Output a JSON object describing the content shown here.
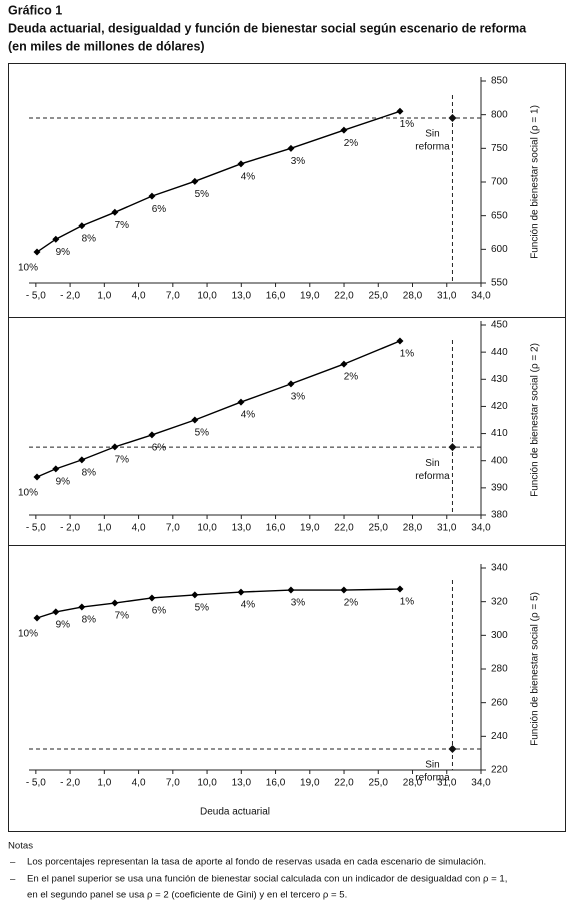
{
  "header": {
    "label": "Gráfico 1",
    "title": "Deuda actuarial, desigualdad y función de bienestar social según escenario de reforma",
    "subtitle": "(en miles de millones de dólares)"
  },
  "chart_data": [
    {
      "type": "line",
      "ylabel": "Función de bienestar social (ρ = 1)",
      "x": [
        -4.9,
        -3.25,
        -0.97,
        1.92,
        5.17,
        8.93,
        12.97,
        17.35,
        21.99,
        26.9
      ],
      "values": [
        596,
        615,
        635,
        655,
        679,
        701,
        727,
        750,
        777,
        805
      ],
      "point_labels": [
        "10%",
        "9%",
        "8%",
        "7%",
        "6%",
        "5%",
        "4%",
        "3%",
        "2%",
        "1%"
      ],
      "color": "#000000",
      "reference": {
        "x": 31.5,
        "y": 795,
        "label": [
          "Sin",
          "reforma"
        ]
      },
      "xlim": [
        -5.6,
        34
      ],
      "ylim": [
        550,
        850
      ],
      "xticks": [
        {
          "value": -5,
          "label": "- 5,0"
        },
        {
          "value": -2,
          "label": "- 2,0"
        },
        {
          "value": 1,
          "label": "1,0"
        },
        {
          "value": 4,
          "label": "4,0"
        },
        {
          "value": 7,
          "label": "7,0"
        },
        {
          "value": 10,
          "label": "10,0"
        },
        {
          "value": 13,
          "label": "13,0"
        },
        {
          "value": 16,
          "label": "16,0"
        },
        {
          "value": 19,
          "label": "19,0"
        },
        {
          "value": 22,
          "label": "22,0"
        },
        {
          "value": 25,
          "label": "25,0"
        },
        {
          "value": 28,
          "label": "28,0"
        },
        {
          "value": 31,
          "label": "31,0"
        },
        {
          "value": 34,
          "label": "34,0"
        }
      ],
      "yticks": [
        550,
        600,
        650,
        700,
        750,
        800,
        850
      ]
    },
    {
      "type": "line",
      "ylabel": "Función de bienestar social (ρ = 2)",
      "x": [
        -4.9,
        -3.25,
        -0.97,
        1.92,
        5.17,
        8.93,
        12.97,
        17.35,
        21.99,
        26.9
      ],
      "values": [
        394.0,
        397.0,
        400.3,
        405.1,
        409.5,
        415.0,
        421.6,
        428.3,
        435.6,
        444.1
      ],
      "point_labels": [
        "10%",
        "9%",
        "8%",
        "7%",
        "6%",
        "5%",
        "4%",
        "3%",
        "2%",
        "1%"
      ],
      "color": "#000000",
      "reference": {
        "x": 31.5,
        "y": 405,
        "label": [
          "Sin",
          "reforma"
        ]
      },
      "xlim": [
        -5.6,
        34
      ],
      "ylim": [
        380,
        450
      ],
      "xticks": [
        {
          "value": -5,
          "label": "- 5,0"
        },
        {
          "value": -2,
          "label": "- 2,0"
        },
        {
          "value": 1,
          "label": "1,0"
        },
        {
          "value": 4,
          "label": "4,0"
        },
        {
          "value": 7,
          "label": "7,0"
        },
        {
          "value": 10,
          "label": "10,0"
        },
        {
          "value": 13,
          "label": "13,0"
        },
        {
          "value": 16,
          "label": "16,0"
        },
        {
          "value": 19,
          "label": "19,0"
        },
        {
          "value": 22,
          "label": "22,0"
        },
        {
          "value": 25,
          "label": "25,0"
        },
        {
          "value": 28,
          "label": "28,0"
        },
        {
          "value": 31,
          "label": "31,0"
        },
        {
          "value": 34,
          "label": "34,0"
        }
      ],
      "yticks": [
        380,
        390,
        400,
        410,
        420,
        430,
        440,
        450
      ]
    },
    {
      "type": "line",
      "ylabel": "Función de bienestar social (ρ = 5)",
      "xlabel": "Deuda actuarial",
      "x": [
        -4.9,
        -3.25,
        -0.97,
        1.92,
        5.17,
        8.93,
        12.97,
        17.35,
        21.99,
        26.9
      ],
      "values": [
        310.3,
        313.9,
        316.8,
        319.2,
        322.2,
        324.0,
        325.7,
        326.9,
        326.9,
        327.5
      ],
      "point_labels": [
        "10%",
        "9%",
        "8%",
        "7%",
        "6%",
        "5%",
        "4%",
        "3%",
        "2%",
        "1%"
      ],
      "color": "#000000",
      "reference": {
        "x": 31.5,
        "y": 232.5,
        "label": [
          "Sin",
          "reforma"
        ]
      },
      "xlim": [
        -5.6,
        34
      ],
      "ylim": [
        220,
        340
      ],
      "xticks": [
        {
          "value": -5,
          "label": "- 5,0"
        },
        {
          "value": -2,
          "label": "- 2,0"
        },
        {
          "value": 1,
          "label": "1,0"
        },
        {
          "value": 4,
          "label": "4,0"
        },
        {
          "value": 7,
          "label": "7,0"
        },
        {
          "value": 10,
          "label": "10,0"
        },
        {
          "value": 13,
          "label": "13,0"
        },
        {
          "value": 16,
          "label": "16,0"
        },
        {
          "value": 19,
          "label": "19,0"
        },
        {
          "value": 22,
          "label": "22,0"
        },
        {
          "value": 25,
          "label": "25,0"
        },
        {
          "value": 28,
          "label": "28,0"
        },
        {
          "value": 31,
          "label": "31,0"
        },
        {
          "value": 34,
          "label": "34,0"
        }
      ],
      "yticks": [
        220,
        240,
        260,
        280,
        300,
        320,
        340
      ]
    }
  ],
  "notes": {
    "title": "Notas",
    "items": [
      "Los porcentajes representan la tasa de aporte al fondo de reservas usada en cada escenario de simulación.",
      "En el panel superior se usa una función de bienestar social calculada con un indicador de desigualdad con ρ = 1,",
      "en el segundo panel se usa ρ = 2 (coeficiente de Gini) y en el tercero ρ = 5."
    ]
  }
}
